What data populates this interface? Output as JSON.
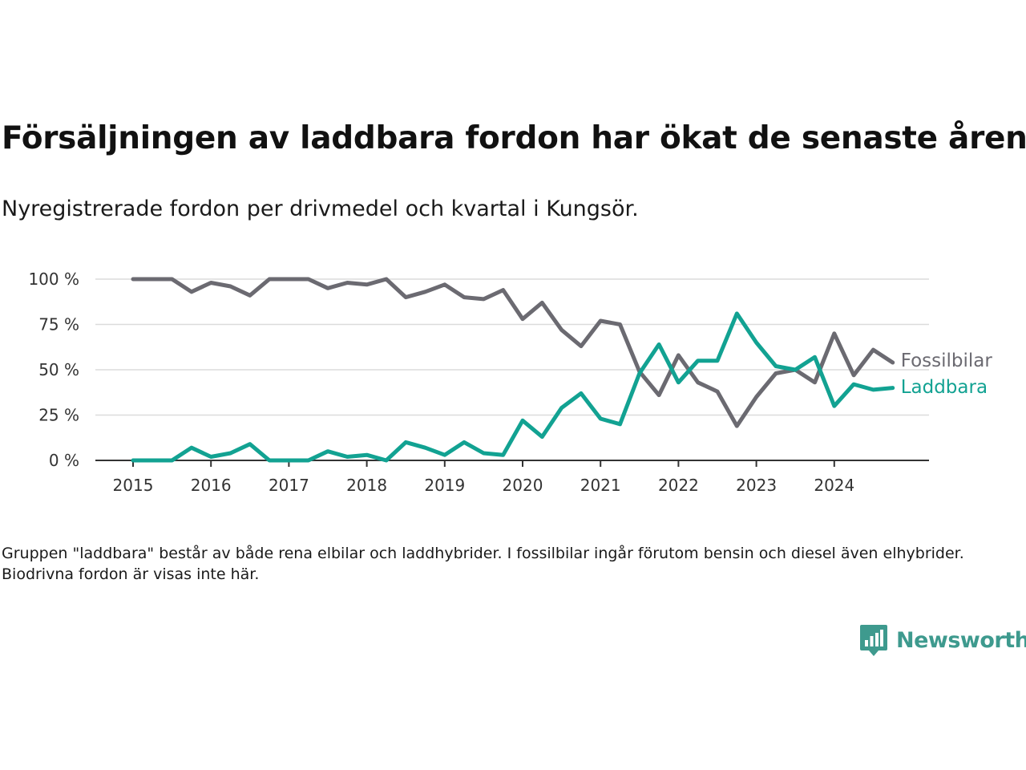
{
  "title": "Försäljningen av laddbara fordon har ökat de senaste åren",
  "subtitle": "Nyregistrerade fordon per drivmedel och kvartal i Kungsör.",
  "footnote": "Gruppen \"laddbara\" består av både rena elbilar och laddhybrider. I fossilbilar ingår förutom bensin och diesel även elhybrider. Biodrivna fordon är visas inte här.",
  "brand": {
    "name": "Newsworthy",
    "color": "#3e9a8e"
  },
  "chart_data": {
    "type": "line",
    "x_tick_labels": [
      "2015",
      "2016",
      "2017",
      "2018",
      "2019",
      "2020",
      "2021",
      "2022",
      "2023",
      "2024"
    ],
    "y_tick_labels": [
      "0 %",
      "25 %",
      "50 %",
      "75 %",
      "100 %"
    ],
    "ylim": [
      0,
      100
    ],
    "grid": true,
    "x": [
      "2015 K1",
      "2015 K2",
      "2015 K3",
      "2015 K4",
      "2016 K1",
      "2016 K2",
      "2016 K3",
      "2016 K4",
      "2017 K1",
      "2017 K2",
      "2017 K3",
      "2017 K4",
      "2018 K1",
      "2018 K2",
      "2018 K3",
      "2018 K4",
      "2019 K1",
      "2019 K2",
      "2019 K3",
      "2019 K4",
      "2020 K1",
      "2020 K2",
      "2020 K3",
      "2020 K4",
      "2021 K1",
      "2021 K2",
      "2021 K3",
      "2021 K4",
      "2022 K1",
      "2022 K2",
      "2022 K3",
      "2022 K4",
      "2023 K1",
      "2023 K2",
      "2023 K3",
      "2023 K4",
      "2024 K1",
      "2024 K2",
      "2024 K3",
      "2024 K4"
    ],
    "series": [
      {
        "name": "Fossilbilar",
        "color": "#6b6a71",
        "values": [
          100,
          100,
          100,
          93,
          98,
          96,
          91,
          100,
          100,
          100,
          95,
          98,
          97,
          100,
          90,
          93,
          97,
          90,
          89,
          94,
          78,
          87,
          72,
          63,
          77,
          75,
          49,
          36,
          58,
          43,
          38,
          19,
          35,
          48,
          50,
          43,
          70,
          47,
          61,
          54
        ]
      },
      {
        "name": "Laddbara",
        "color": "#12a292",
        "values": [
          0,
          0,
          0,
          7,
          2,
          4,
          9,
          0,
          0,
          0,
          5,
          2,
          3,
          0,
          10,
          7,
          3,
          10,
          4,
          3,
          22,
          13,
          29,
          37,
          23,
          20,
          48,
          64,
          43,
          55,
          55,
          81,
          65,
          52,
          50,
          57,
          30,
          42,
          39,
          40
        ]
      }
    ]
  }
}
